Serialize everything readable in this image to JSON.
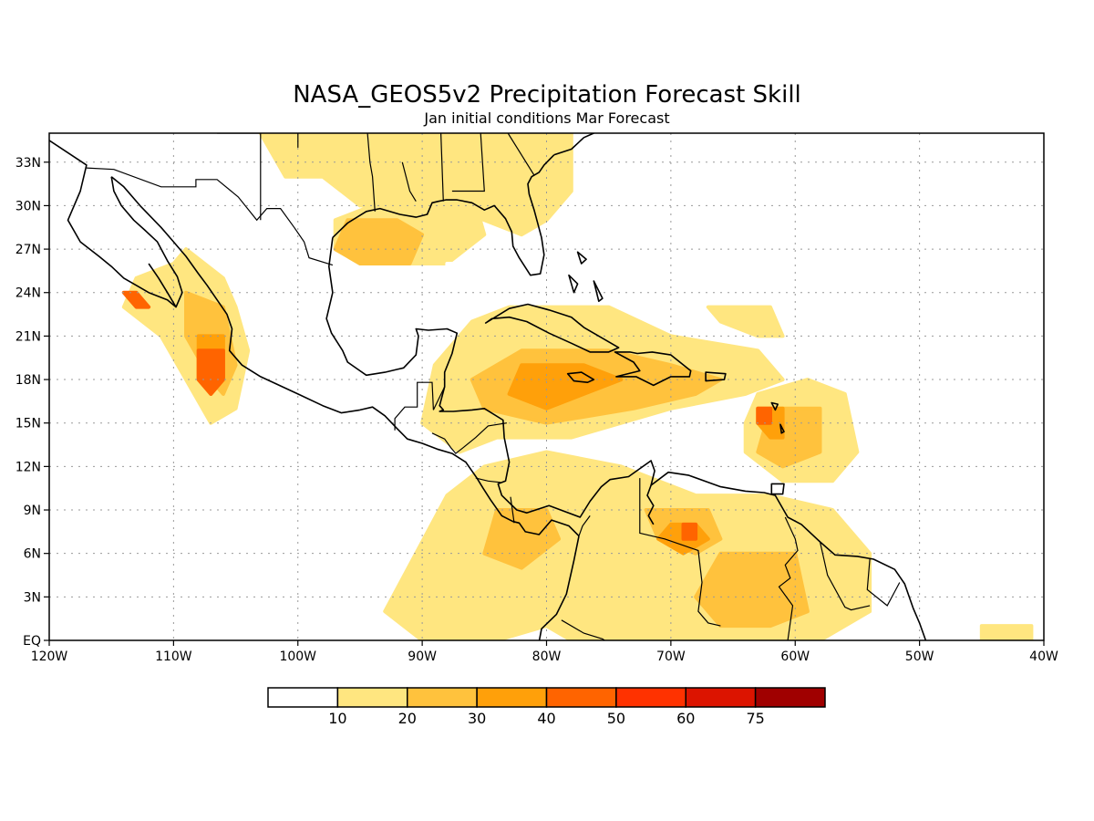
{
  "figure": {
    "title": "NASA_GEOS5v2 Precipitation Forecast Skill",
    "subtitle": "Jan initial conditions  Mar Forecast"
  },
  "map": {
    "lon_range": [
      -120,
      -40
    ],
    "lat_range": [
      0,
      35
    ],
    "grid": true,
    "x_ticks": [
      "120W",
      "110W",
      "100W",
      "90W",
      "80W",
      "70W",
      "60W",
      "50W",
      "40W"
    ],
    "y_ticks": [
      "EQ",
      "3N",
      "6N",
      "9N",
      "12N",
      "15N",
      "18N",
      "21N",
      "24N",
      "27N",
      "30N",
      "33N"
    ]
  },
  "colorbar": {
    "labels": [
      "10",
      "20",
      "30",
      "40",
      "50",
      "60",
      "75"
    ],
    "colors": [
      "#ffffff",
      "#ffe680",
      "#ffc23d",
      "#ffa00a",
      "#ff6400",
      "#ff3200",
      "#dc1400",
      "#a00000"
    ]
  },
  "skill_regions": [
    {
      "level": 1,
      "lon": [
        -103,
        -78,
        -78,
        -80,
        -82,
        -85,
        -88,
        -95,
        -98,
        -101
      ],
      "lat": [
        35,
        35,
        31,
        29,
        28,
        29,
        30,
        30,
        32,
        32
      ]
    },
    {
      "level": 1,
      "lon": [
        -90,
        -86,
        -85,
        -88,
        -92,
        -95,
        -97,
        -97,
        -94
      ],
      "lat": [
        31,
        31,
        28,
        26,
        26,
        26,
        27,
        29,
        30
      ]
    },
    {
      "level": 1,
      "lon": [
        -83,
        -75,
        -70,
        -63,
        -61,
        -64,
        -70,
        -78,
        -84,
        -87,
        -90,
        -89,
        -86
      ],
      "lat": [
        23,
        23,
        21,
        20,
        18,
        17,
        16,
        14,
        14,
        13,
        15,
        19,
        22
      ]
    },
    {
      "level": 1,
      "lon": [
        -109,
        -106,
        -105,
        -104,
        -105,
        -107,
        -111,
        -114,
        -113,
        -110
      ],
      "lat": [
        27,
        25,
        23,
        20,
        16,
        15,
        21,
        23,
        25,
        26
      ]
    },
    {
      "level": 1,
      "lon": [
        -88,
        -85,
        -80,
        -74,
        -71,
        -68,
        -62,
        -57,
        -54,
        -54,
        -58,
        -64,
        -70,
        -74,
        -78,
        -80,
        -84,
        -90,
        -93
      ],
      "lat": [
        10,
        12,
        13,
        12,
        11,
        10,
        10,
        9,
        6,
        2,
        0,
        0,
        0,
        0,
        0,
        1,
        0,
        0,
        2
      ]
    },
    {
      "level": 1,
      "lon": [
        -63,
        -59,
        -56,
        -55,
        -57,
        -61,
        -64,
        -64
      ],
      "lat": [
        17,
        18,
        17,
        13,
        11,
        11,
        13,
        15
      ]
    },
    {
      "level": 1,
      "lon": [
        -67,
        -62,
        -61,
        -63,
        -66
      ],
      "lat": [
        23,
        23,
        21,
        21,
        22
      ]
    },
    {
      "level": 1,
      "lon": [
        -45,
        -41,
        -41,
        -45
      ],
      "lat": [
        1,
        1,
        0,
        0
      ]
    },
    {
      "level": 2,
      "lon": [
        -96,
        -92,
        -90,
        -91,
        -95,
        -97
      ],
      "lat": [
        29,
        29,
        28,
        26,
        26,
        27
      ]
    },
    {
      "level": 2,
      "lon": [
        -82,
        -75,
        -70,
        -66,
        -68,
        -73,
        -80,
        -85,
        -86
      ],
      "lat": [
        20,
        20,
        19,
        18,
        17,
        16,
        15,
        16,
        18
      ]
    },
    {
      "level": 2,
      "lon": [
        -109,
        -106,
        -105,
        -106,
        -107,
        -109
      ],
      "lat": [
        24,
        23,
        19,
        17,
        18,
        21
      ]
    },
    {
      "level": 2,
      "lon": [
        -72,
        -67,
        -66,
        -68,
        -71
      ],
      "lat": [
        9,
        9,
        7,
        6,
        7
      ]
    },
    {
      "level": 2,
      "lon": [
        -62,
        -58,
        -58,
        -61,
        -63
      ],
      "lat": [
        16,
        16,
        13,
        12,
        13
      ]
    },
    {
      "level": 2,
      "lon": [
        -84,
        -80,
        -79,
        -82,
        -85
      ],
      "lat": [
        9,
        9,
        7,
        5,
        6
      ]
    },
    {
      "level": 2,
      "lon": [
        -66,
        -60,
        -59,
        -62,
        -66,
        -68
      ],
      "lat": [
        6,
        6,
        2,
        1,
        1,
        3
      ]
    },
    {
      "level": 3,
      "lon": [
        -82,
        -77,
        -74,
        -77,
        -80,
        -83
      ],
      "lat": [
        19,
        19,
        18,
        17,
        16,
        17
      ]
    },
    {
      "level": 3,
      "lon": [
        -108,
        -106,
        -106,
        -107,
        -108
      ],
      "lat": [
        21,
        21,
        18,
        17,
        18
      ]
    },
    {
      "level": 3,
      "lon": [
        -70,
        -68,
        -67,
        -69,
        -71
      ],
      "lat": [
        8,
        8,
        7,
        6,
        7
      ]
    },
    {
      "level": 3,
      "lon": [
        -63,
        -61,
        -61,
        -62,
        -63
      ],
      "lat": [
        16,
        16,
        14,
        14,
        15
      ]
    },
    {
      "level": 4,
      "lon": [
        -108,
        -106,
        -106,
        -107,
        -108
      ],
      "lat": [
        20,
        20,
        18,
        17,
        18
      ]
    },
    {
      "level": 4,
      "lon": [
        -69,
        -68,
        -68,
        -69
      ],
      "lat": [
        8,
        8,
        7,
        7
      ]
    },
    {
      "level": 4,
      "lon": [
        -63,
        -62,
        -62,
        -63
      ],
      "lat": [
        16,
        16,
        15,
        15
      ]
    },
    {
      "level": 4,
      "lon": [
        -114,
        -113,
        -112,
        -113
      ],
      "lat": [
        24,
        24,
        23,
        23
      ]
    },
    {
      "level": 0,
      "lon": [
        -88,
        -84,
        -84,
        -88
      ],
      "lat": [
        26,
        26,
        23,
        23
      ]
    }
  ],
  "coastlines": [
    {
      "lon": [
        -120,
        -117,
        -117.5,
        -118,
        -118.5,
        -117.5,
        -116,
        -115,
        -114,
        -113,
        -112,
        -110.5,
        -109.8
      ],
      "lat": [
        34.5,
        32.8,
        31,
        30,
        29,
        27.5,
        26.5,
        25.8,
        25,
        24.5,
        24,
        23.5,
        23
      ]
    },
    {
      "lon": [
        -115,
        -114.8,
        -114.2,
        -113.2,
        -112.3,
        -111.3,
        -110.5,
        -109.7,
        -109.3,
        -109.8,
        -110.5,
        -111.2,
        -112
      ],
      "lat": [
        32,
        31,
        30,
        29,
        28.3,
        27.5,
        26.2,
        25.1,
        24,
        23,
        24,
        25,
        26
      ]
    },
    {
      "lon": [
        -115,
        -114,
        -112.7,
        -111,
        -110,
        -109,
        -108,
        -107.3,
        -106.5,
        -105.7,
        -105.3,
        -105.5,
        -104.5,
        -103,
        -101.5,
        -100,
        -98,
        -96.5,
        -95
      ],
      "lat": [
        32,
        31.3,
        30,
        28.5,
        27.5,
        26.5,
        25.3,
        24.5,
        23.5,
        22.5,
        21.5,
        20,
        19,
        18.2,
        17.6,
        17,
        16.2,
        15.7,
        15.9
      ]
    },
    {
      "lon": [
        -95,
        -94,
        -93,
        -92,
        -91.2,
        -90,
        -88.8,
        -87.6,
        -86.5,
        -85.6,
        -85.1,
        -84.5,
        -83.6,
        -82.7,
        -82.2,
        -81.7,
        -80.6,
        -79.6,
        -78.2,
        -77.4
      ],
      "lat": [
        15.9,
        16.1,
        15.5,
        14.6,
        13.9,
        13.6,
        13.2,
        12.9,
        12.3,
        11.2,
        10.5,
        9.7,
        8.6,
        8.2,
        8.1,
        7.5,
        7.3,
        8.3,
        7.9,
        7.2
      ]
    },
    {
      "lon": [
        -77.4,
        -77.8,
        -78.4,
        -79.2,
        -80.4,
        -80.8,
        -80
      ],
      "lat": [
        7.2,
        5.5,
        3.2,
        1.8,
        0.8,
        -1,
        -2
      ]
    },
    {
      "lon": [
        -97.2,
        -97.5,
        -97.2,
        -97.7,
        -97.3,
        -96.4,
        -96,
        -95,
        -94.5,
        -93,
        -92,
        -91.5,
        -90.5,
        -90.3,
        -90.5,
        -89.5,
        -88,
        -87.2,
        -87.6,
        -88.2,
        -88.2,
        -88.6,
        -88.3,
        -88.6,
        -87.5,
        -86,
        -85,
        -83.5,
        -83.4,
        -83,
        -83.3,
        -83.9,
        -83.6,
        -82.4,
        -81.6,
        -79.8,
        -77.3,
        -76.5,
        -75.6,
        -74.9,
        -73.4,
        -71.6,
        -71.3,
        -71.6,
        -70.2,
        -68.6,
        -66,
        -64,
        -62.5,
        -61.6,
        -60.6,
        -59.5,
        -58,
        -56.8,
        -55,
        -53.7,
        -52,
        -51.2,
        -50.5,
        -50,
        -49.5
      ],
      "lat": [
        27.8,
        25.8,
        24,
        22.2,
        21.2,
        20,
        19.2,
        18.6,
        18.3,
        18.5,
        18.7,
        18.8,
        19.7,
        21,
        21.5,
        21.4,
        21.5,
        21.2,
        19.8,
        18.5,
        17.5,
        16.2,
        15.9,
        15.8,
        15.8,
        15.9,
        16,
        15.2,
        14,
        12.3,
        11,
        10.8,
        10,
        9,
        8.8,
        9.3,
        8.5,
        9.6,
        10.6,
        11.1,
        11.3,
        12.4,
        11.7,
        10.7,
        11.6,
        11.4,
        10.6,
        10.3,
        10.2,
        10,
        8.5,
        8,
        6.8,
        5.9,
        5.8,
        5.6,
        4.9,
        3.9,
        2.2,
        1.2,
        0
      ]
    },
    {
      "lon": [
        -71.6,
        -71.9,
        -71.4,
        -71.8,
        -71.4
      ],
      "lat": [
        10.7,
        10,
        9.3,
        8.6,
        8
      ]
    },
    {
      "lon": [
        -97.2,
        -96,
        -94.5,
        -93.4,
        -91.8,
        -90.5,
        -89.6,
        -89.2,
        -88.7,
        -88.1,
        -87.2,
        -86,
        -85,
        -84.2,
        -83.3,
        -82.8,
        -82.7,
        -82.2,
        -81.3,
        -80.5,
        -80.2,
        -80.4,
        -81,
        -81.4,
        -81.5,
        -81.2,
        -80.6,
        -80.2,
        -79.4
      ],
      "lat": [
        27.8,
        28.8,
        29.6,
        29.8,
        29.4,
        29.2,
        29.4,
        30.2,
        30.3,
        30.4,
        30.4,
        30.2,
        29.7,
        30,
        29.1,
        28.2,
        27.2,
        26.4,
        25.2,
        25.3,
        26.6,
        27.8,
        29.7,
        30.8,
        31.5,
        32,
        32.3,
        32.8,
        33.5
      ]
    },
    {
      "lon": [
        -79.4,
        -78,
        -77,
        -76.2,
        -75.8
      ],
      "lat": [
        33.5,
        33.9,
        34.7,
        35,
        35.5
      ]
    }
  ],
  "islands": [
    {
      "lon": [
        -84.9,
        -83,
        -81.5,
        -79.8,
        -78,
        -77,
        -75.8,
        -74.2,
        -75,
        -76.5,
        -78,
        -79.8,
        -81.6,
        -83,
        -84.4
      ],
      "lat": [
        21.9,
        22.9,
        23.2,
        22.8,
        22.3,
        21.6,
        21,
        20.2,
        19.9,
        19.9,
        20.5,
        21.2,
        22,
        22.3,
        22.2
      ]
    },
    {
      "lon": [
        -74.4,
        -73.3,
        -72.7,
        -71.5,
        -70,
        -68.4,
        -68.5,
        -70,
        -71.4,
        -72.8,
        -74.4,
        -72.5,
        -73,
        -74.5
      ],
      "lat": [
        19.9,
        19.9,
        19.8,
        19.9,
        19.7,
        18.6,
        18.2,
        18.2,
        17.6,
        18.2,
        18.2,
        18.6,
        19.2,
        19.9
      ]
    },
    {
      "lon": [
        -78.3,
        -77.2,
        -76.2,
        -76.7,
        -77.8,
        -78.3
      ],
      "lat": [
        18.4,
        18.5,
        18,
        17.8,
        17.9,
        18.4
      ]
    },
    {
      "lon": [
        -67.2,
        -65.6,
        -65.7,
        -67.2,
        -67.2
      ],
      "lat": [
        18.5,
        18.4,
        18,
        17.9,
        18.5
      ]
    },
    {
      "lon": [
        -61.9,
        -61.4,
        -61.6,
        -61.9
      ],
      "lat": [
        16.4,
        16.3,
        15.9,
        16.4
      ]
    },
    {
      "lon": [
        -61.2,
        -60.9,
        -61.1,
        -61.2
      ],
      "lat": [
        14.9,
        14.4,
        14.3,
        14.9
      ]
    },
    {
      "lon": [
        -61.9,
        -60.9,
        -61,
        -61.9
      ],
      "lat": [
        10.8,
        10.8,
        10.1,
        10.1
      ]
    },
    {
      "lon": [
        -78.2,
        -77.5,
        -77.8,
        -78.2
      ],
      "lat": [
        25.2,
        24.6,
        24,
        25.2
      ]
    },
    {
      "lon": [
        -77.5,
        -76.8,
        -77.2,
        -77.5
      ],
      "lat": [
        26.8,
        26.3,
        26,
        26.8
      ]
    },
    {
      "lon": [
        -76.2,
        -75.5,
        -75.8,
        -76.2
      ],
      "lat": [
        24.8,
        23.6,
        23.4,
        24.8
      ]
    }
  ],
  "borders": [
    {
      "lon": [
        -117,
        -114.8,
        -111,
        -108.2,
        -108.2,
        -106.5,
        -104.8,
        -103.3,
        -102.5,
        -101.4,
        -100.3,
        -99.5,
        -99.1,
        -97.2
      ],
      "lat": [
        32.6,
        32.5,
        31.3,
        31.3,
        31.8,
        31.8,
        30.6,
        29,
        29.8,
        29.8,
        28.5,
        27.5,
        26.4,
        25.9
      ]
    },
    {
      "lon": [
        -92.2,
        -92.2,
        -91.4,
        -90.4,
        -90.4,
        -89.2,
        -89.1,
        -88.2
      ],
      "lat": [
        14.5,
        15.3,
        16.1,
        16.1,
        17.8,
        17.8,
        15.9,
        17.5
      ]
    },
    {
      "lon": [
        -89.2,
        -88.2,
        -87.7,
        -87.3,
        -86.7,
        -85.7,
        -84.7,
        -83.2
      ],
      "lat": [
        14.3,
        13.9,
        13.3,
        12.9,
        13.3,
        14,
        14.8,
        15
      ]
    },
    {
      "lon": [
        -85.7,
        -84.7,
        -83.7
      ],
      "lat": [
        11.2,
        11,
        10.9
      ]
    },
    {
      "lon": [
        -82.9,
        -82.6
      ],
      "lat": [
        9.9,
        8.1
      ]
    },
    {
      "lon": [
        -77.4,
        -77.1,
        -76.5
      ],
      "lat": [
        7.2,
        7.9,
        8.6
      ]
    },
    {
      "lon": [
        -72.5,
        -72.5,
        -70.5,
        -67.8,
        -67.5,
        -67.8,
        -67,
        -66
      ],
      "lat": [
        11.2,
        7.4,
        7,
        6.2,
        4,
        2,
        1.2,
        1
      ]
    },
    {
      "lon": [
        -78.8,
        -77,
        -75.5,
        -73.6
      ],
      "lat": [
        1.4,
        0.5,
        0.1,
        -1
      ]
    },
    {
      "lon": [
        -60.8,
        -60,
        -59.8,
        -60.8,
        -60.4,
        -61.3,
        -60.2,
        -60.6
      ],
      "lat": [
        8.5,
        7,
        6.2,
        5.2,
        4.3,
        3.7,
        2.4,
        0
      ]
    },
    {
      "lon": [
        -58,
        -57.4,
        -56,
        -55.5,
        -54
      ],
      "lat": [
        6.8,
        4.5,
        2.3,
        2.1,
        2.4
      ]
    },
    {
      "lon": [
        -54,
        -54.2,
        -52.6,
        -51.6
      ],
      "lat": [
        5.6,
        3.5,
        2.4,
        4
      ]
    },
    {
      "lon": [
        -106.5,
        -103,
        -103,
        -103
      ],
      "lat": [
        35,
        35,
        32,
        29
      ]
    },
    {
      "lon": [
        -100,
        -100
      ],
      "lat": [
        35,
        34
      ]
    },
    {
      "lon": [
        -94.4,
        -94.2,
        -94,
        -93.8
      ],
      "lat": [
        35,
        33,
        32,
        29.6
      ]
    },
    {
      "lon": [
        -91.6,
        -91,
        -90.5
      ],
      "lat": [
        33,
        31,
        30.3
      ]
    },
    {
      "lon": [
        -88.5,
        -88.3
      ],
      "lat": [
        35,
        30.3
      ]
    },
    {
      "lon": [
        -85.3,
        -85,
        -87.6
      ],
      "lat": [
        35,
        31,
        31
      ]
    },
    {
      "lon": [
        -83.1,
        -81
      ],
      "lat": [
        35,
        32.1
      ]
    }
  ]
}
